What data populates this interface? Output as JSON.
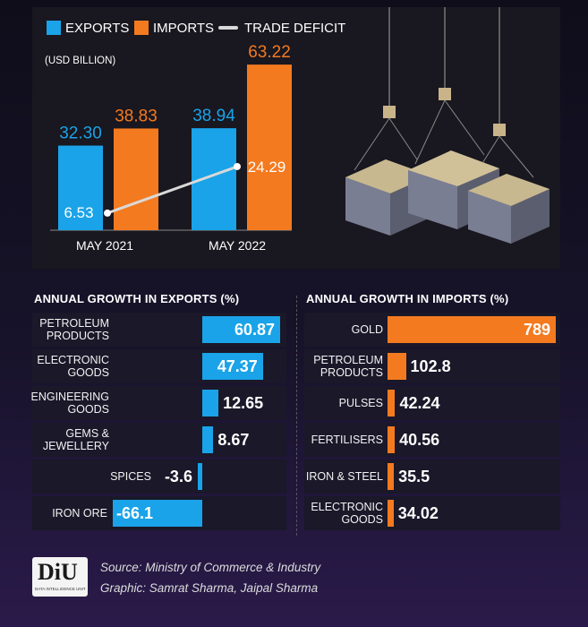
{
  "chart_data": [
    {
      "type": "bar",
      "legend": [
        "EXPORTS",
        "IMPORTS",
        "TRADE DEFICIT"
      ],
      "legend_placement": "top-left",
      "units_label": "(USD BILLION)",
      "categories": [
        "MAY 2021",
        "MAY 2022"
      ],
      "series": [
        {
          "name": "EXPORTS",
          "values": [
            32.3,
            38.94
          ],
          "labels": [
            "32.30",
            "38.94"
          ],
          "color": "#1aa3e8"
        },
        {
          "name": "IMPORTS",
          "values": [
            38.83,
            63.22
          ],
          "labels": [
            "38.83",
            "63.22"
          ],
          "color": "#f47a20"
        },
        {
          "name": "TRADE DEFICIT",
          "type": "line",
          "values": [
            6.53,
            24.29
          ],
          "labels": [
            "6.53",
            "24.29"
          ],
          "color": "#d9d9d9"
        }
      ],
      "ylim": [
        0,
        66
      ],
      "grid": false
    },
    {
      "type": "bar",
      "orientation": "horizontal",
      "title": "ANNUAL GROWTH IN EXPORTS (%)",
      "categories": [
        "PETROLEUM\nPRODUCTS",
        "ELECTRONIC\nGOODS",
        "ENGINEERING\nGOODS",
        "GEMS &\nJEWELLERY",
        "SPICES",
        "IRON ORE"
      ],
      "values": [
        60.87,
        47.37,
        12.65,
        8.67,
        -3.6,
        -66.1
      ],
      "labels": [
        "60.87",
        "47.37",
        "12.65",
        "8.67",
        "-3.6",
        "-66.1"
      ],
      "color": "#1aa3e8"
    },
    {
      "type": "bar",
      "orientation": "horizontal",
      "title": "ANNUAL GROWTH IN IMPORTS (%)",
      "categories": [
        "GOLD",
        "PETROLEUM\nPRODUCTS",
        "PULSES",
        "FERTILISERS",
        "IRON & STEEL",
        "ELECTRONIC\nGOODS"
      ],
      "values": [
        789,
        102.8,
        42.24,
        40.56,
        35.5,
        34.02
      ],
      "labels": [
        "789",
        "102.8",
        "42.24",
        "40.56",
        "35.5",
        "34.02"
      ],
      "color": "#f47a20"
    }
  ],
  "footer": {
    "logo_text": "DiU",
    "logo_sub": "DATA INTELLIGENCE UNIT",
    "source": "Source: Ministry of Commerce & Industry",
    "graphic": "Graphic: Samrat Sharma, Jaipal Sharma"
  }
}
